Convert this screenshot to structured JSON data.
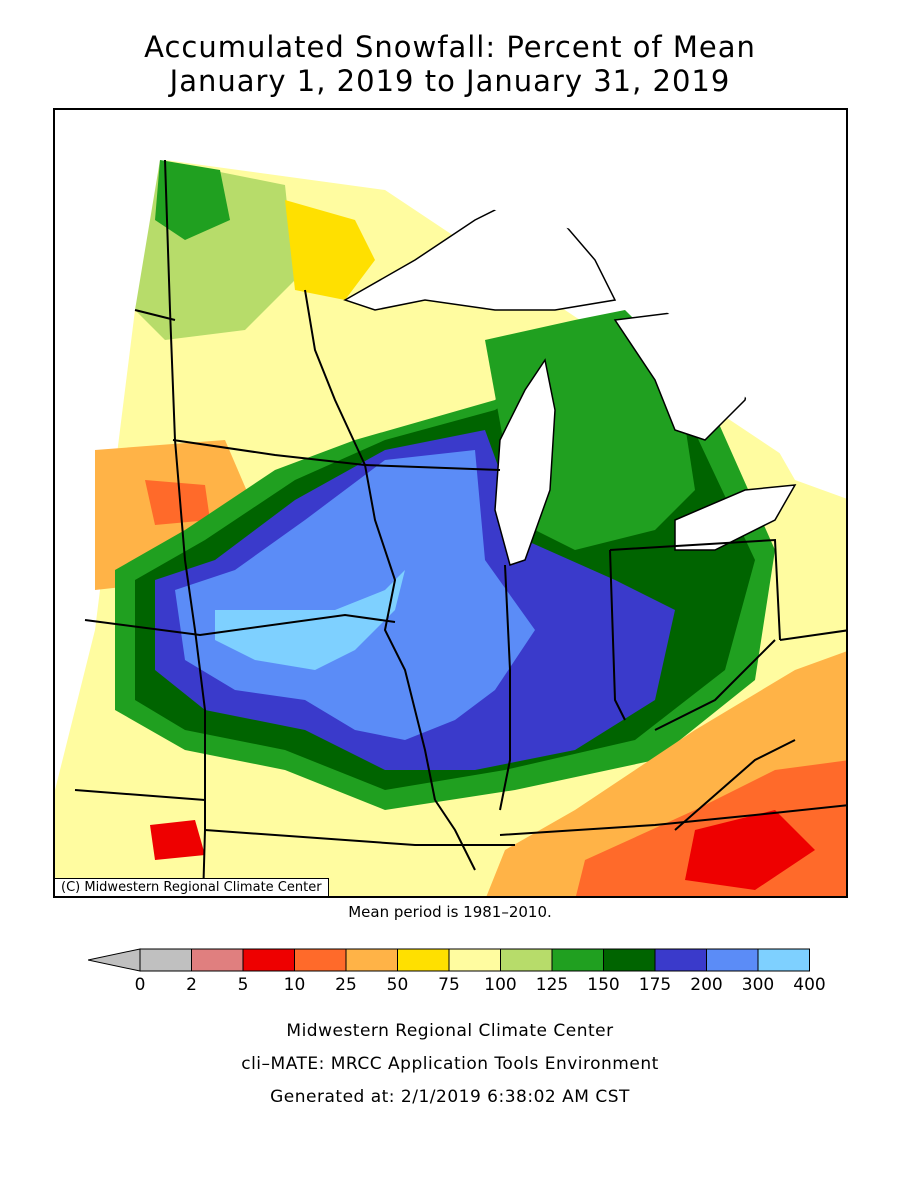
{
  "title": {
    "line1": "Accumulated Snowfall: Percent of Mean",
    "line2": "January 1, 2019 to January 31, 2019"
  },
  "map": {
    "copyright": "(C) Midwestern Regional Climate Center",
    "mean_period": "Mean period is 1981–2010."
  },
  "legend": {
    "thresholds": [
      "0",
      "2",
      "5",
      "10",
      "25",
      "50",
      "75",
      "100",
      "125",
      "150",
      "175",
      "200",
      "300",
      "400"
    ],
    "colors": [
      "#c0c0c0",
      "#e07f7f",
      "#ee0000",
      "#ff6a2a",
      "#ffb347",
      "#ffe000",
      "#fffca0",
      "#b7dc6a",
      "#20a020",
      "#006400",
      "#3a3acb",
      "#5b8cf7",
      "#7ed0ff"
    ]
  },
  "footer": {
    "line1": "Midwestern Regional Climate Center",
    "line2": "cli–MATE: MRCC Application Tools Environment",
    "line3": "Generated at: 2/1/2019 6:38:02 AM CST"
  }
}
